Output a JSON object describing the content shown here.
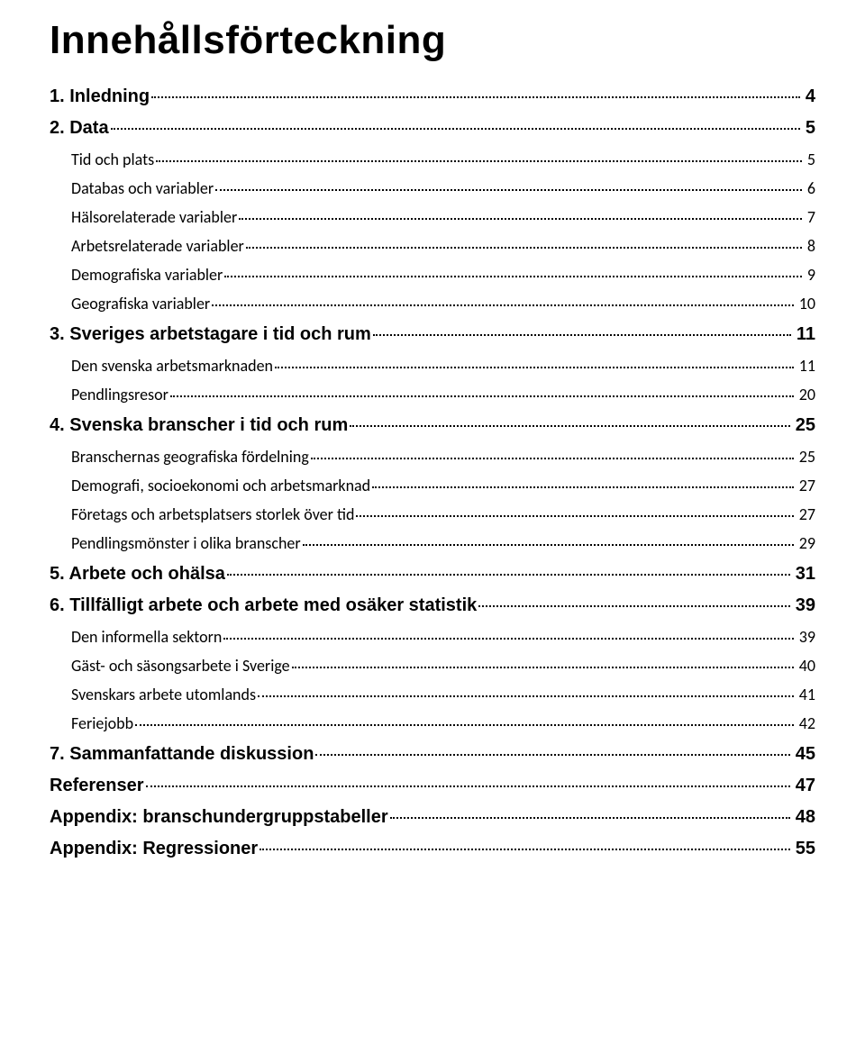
{
  "title": "Innehållsförteckning",
  "toc": [
    {
      "level": 0,
      "label": "1. Inledning",
      "page": "4"
    },
    {
      "level": 0,
      "label": "2. Data",
      "page": "5"
    },
    {
      "level": 1,
      "label": "Tid och plats",
      "page": "5"
    },
    {
      "level": 1,
      "label": "Databas och variabler",
      "page": "6"
    },
    {
      "level": 1,
      "label": "Hälsorelaterade variabler",
      "page": "7"
    },
    {
      "level": 1,
      "label": "Arbetsrelaterade variabler",
      "page": "8"
    },
    {
      "level": 1,
      "label": "Demografiska variabler",
      "page": "9"
    },
    {
      "level": 1,
      "label": "Geografiska variabler",
      "page": "10"
    },
    {
      "level": 0,
      "label": "3. Sveriges arbetstagare i tid och rum",
      "page": "11"
    },
    {
      "level": 1,
      "label": "Den svenska arbetsmarknaden",
      "page": "11"
    },
    {
      "level": 1,
      "label": "Pendlingsresor",
      "page": "20"
    },
    {
      "level": 0,
      "label": "4. Svenska branscher i tid och rum",
      "page": "25"
    },
    {
      "level": 1,
      "label": "Branschernas geografiska fördelning",
      "page": "25"
    },
    {
      "level": 1,
      "label": "Demografi, socioekonomi och arbetsmarknad",
      "page": "27"
    },
    {
      "level": 1,
      "label": "Företags och arbetsplatsers storlek över tid",
      "page": "27"
    },
    {
      "level": 1,
      "label": "Pendlingsmönster i olika branscher",
      "page": "29"
    },
    {
      "level": 0,
      "label": "5. Arbete och ohälsa",
      "page": "31"
    },
    {
      "level": 0,
      "label": "6. Tillfälligt arbete och arbete med osäker statistik",
      "page": "39"
    },
    {
      "level": 1,
      "label": "Den informella sektorn",
      "page": "39"
    },
    {
      "level": 1,
      "label": "Gäst- och säsongsarbete i Sverige",
      "page": "40"
    },
    {
      "level": 1,
      "label": "Svenskars arbete utomlands",
      "page": "41"
    },
    {
      "level": 1,
      "label": "Feriejobb",
      "page": "42"
    },
    {
      "level": 0,
      "label": "7. Sammanfattande diskussion",
      "page": "45"
    },
    {
      "level": 0,
      "label": "Referenser",
      "page": "47"
    },
    {
      "level": 0,
      "label": "Appendix: branschundergruppstabeller",
      "page": "48"
    },
    {
      "level": 0,
      "label": "Appendix: Regressioner",
      "page": "55"
    }
  ]
}
